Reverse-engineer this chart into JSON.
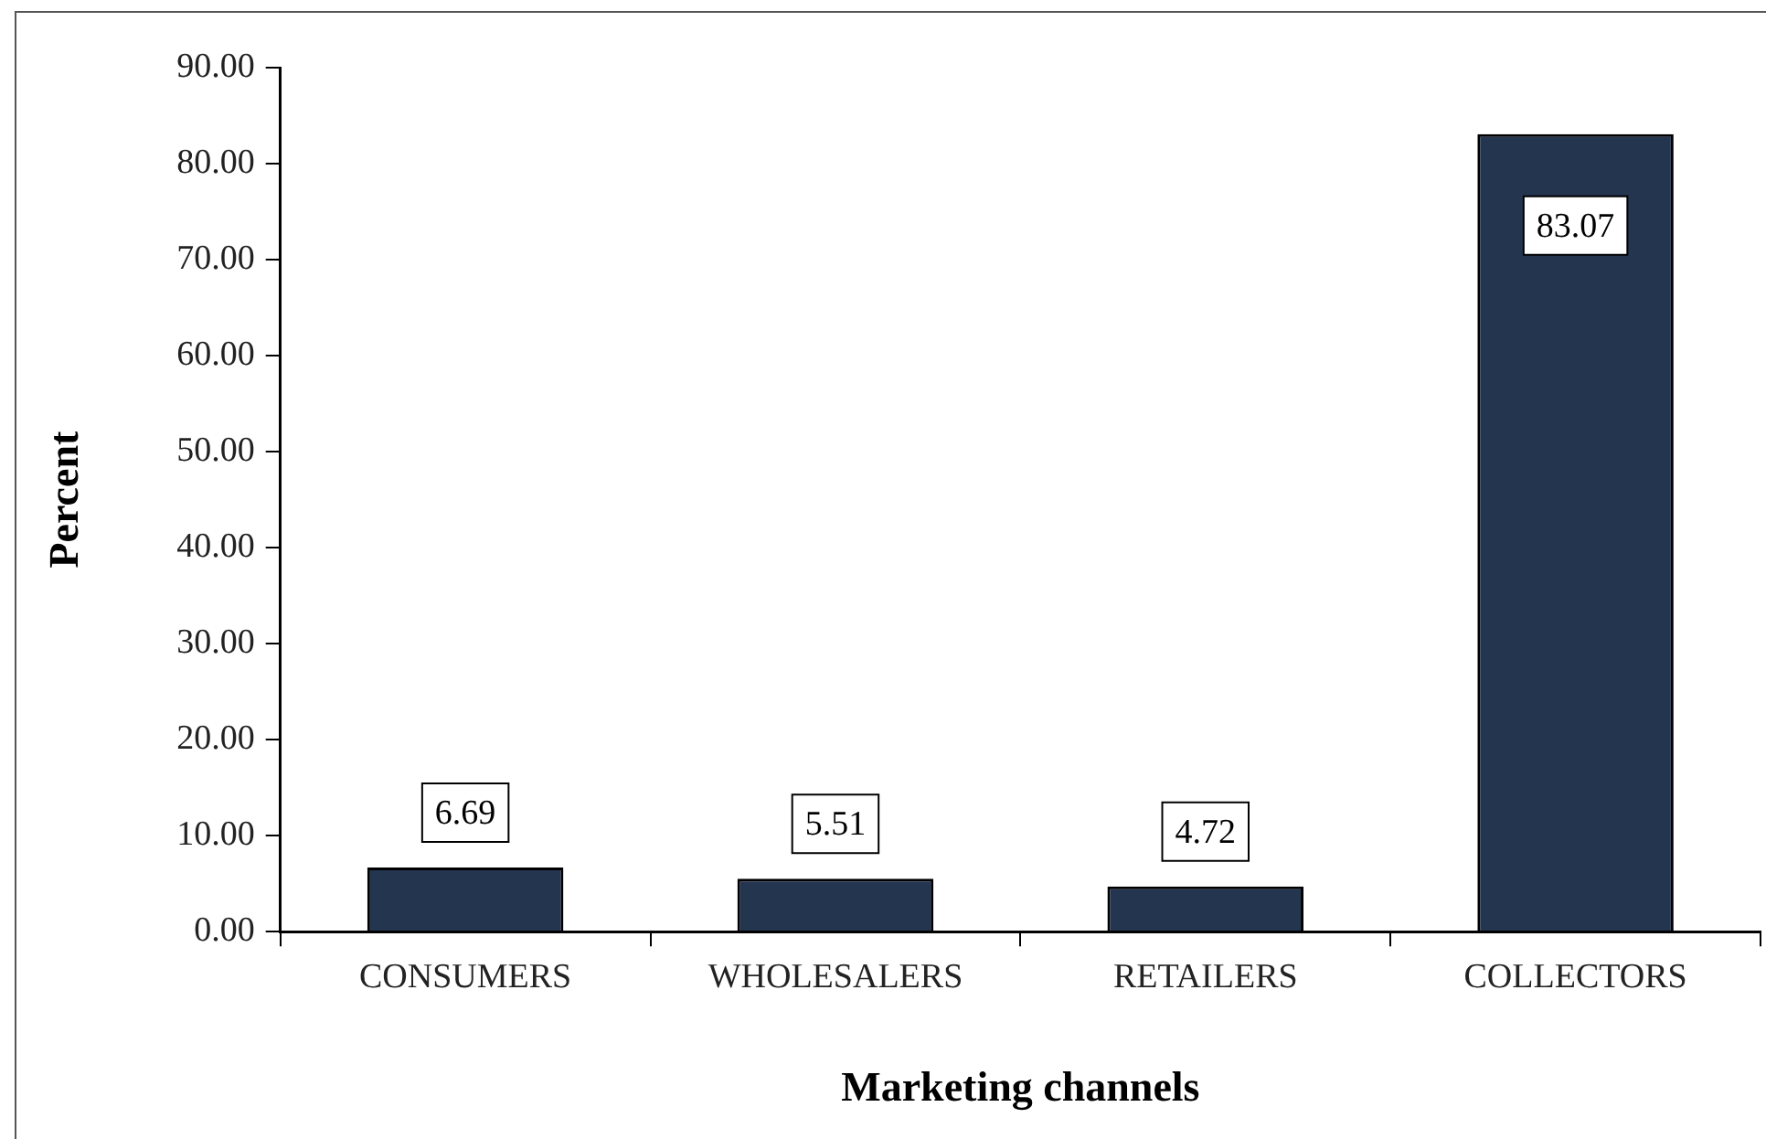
{
  "chart_data": {
    "type": "bar",
    "xlabel": "Marketing channels",
    "ylabel": "Percent",
    "categories": [
      "CONSUMERS",
      "WHOLESALERS",
      "RETAILERS",
      "COLLECTORS"
    ],
    "values": [
      6.69,
      5.51,
      4.72,
      83.07
    ],
    "color": "#243550",
    "ylim": [
      0,
      90
    ],
    "yticks": [
      {
        "value": 0,
        "label": "0.00"
      },
      {
        "value": 10,
        "label": "10.00"
      },
      {
        "value": 20,
        "label": "20.00"
      },
      {
        "value": 30,
        "label": "30.00"
      },
      {
        "value": 40,
        "label": "40.00"
      },
      {
        "value": 50,
        "label": "50.00"
      },
      {
        "value": 60,
        "label": "60.00"
      },
      {
        "value": 70,
        "label": "70.00"
      },
      {
        "value": 80,
        "label": "80.00"
      },
      {
        "value": 90,
        "label": "90.00"
      }
    ],
    "grid": false,
    "legend": false,
    "data_labels": true
  }
}
